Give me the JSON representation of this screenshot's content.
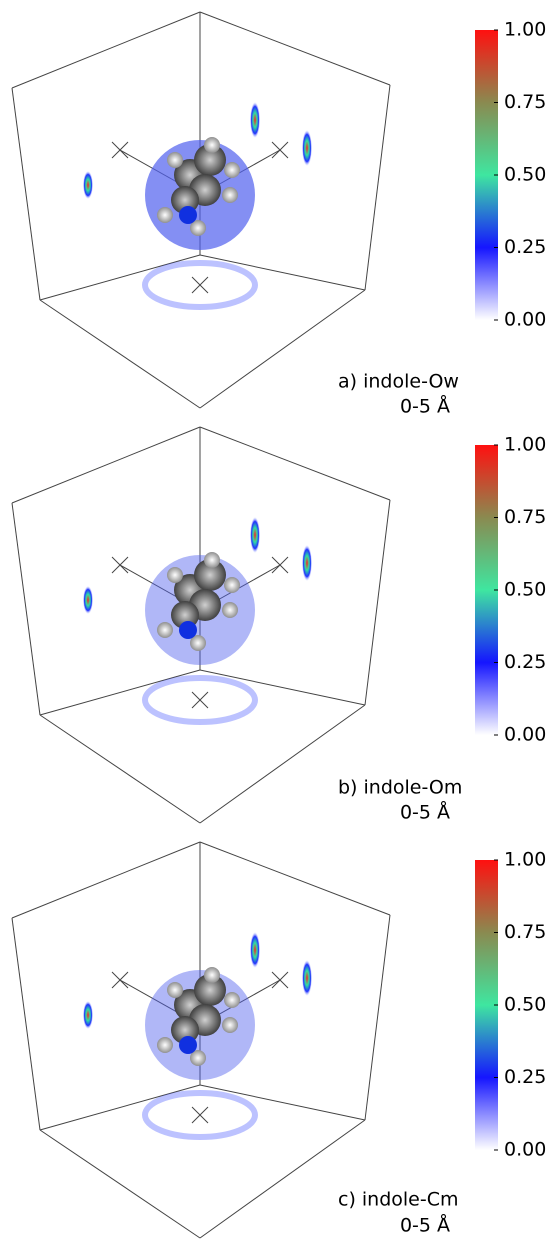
{
  "panels": [
    {
      "caption": "a) indole-Ow",
      "range": "0-5 Å",
      "colorbar": {
        "ticks": [
          {
            "value": 1,
            "label": "1.00"
          },
          {
            "value": 0.75,
            "label": "0.75"
          },
          {
            "value": 0.5,
            "label": "0.50"
          },
          {
            "value": 0.25,
            "label": "0.25"
          },
          {
            "value": 0,
            "label": "0.00"
          }
        ]
      }
    },
    {
      "caption": "b) indole-Om",
      "range": "0-5 Å",
      "colorbar": {
        "ticks": [
          {
            "value": 1,
            "label": "1.00"
          },
          {
            "value": 0.75,
            "label": "0.75"
          },
          {
            "value": 0.5,
            "label": "0.50"
          },
          {
            "value": 0.25,
            "label": "0.25"
          },
          {
            "value": 0,
            "label": "0.00"
          }
        ]
      }
    },
    {
      "caption": "c) indole-Cm",
      "range": "0-5 Å",
      "colorbar": {
        "ticks": [
          {
            "value": 1,
            "label": "1.00"
          },
          {
            "value": 0.75,
            "label": "0.75"
          },
          {
            "value": 0.5,
            "label": "0.50"
          },
          {
            "value": 0.25,
            "label": "0.25"
          },
          {
            "value": 0,
            "label": "0.00"
          }
        ]
      }
    }
  ]
}
